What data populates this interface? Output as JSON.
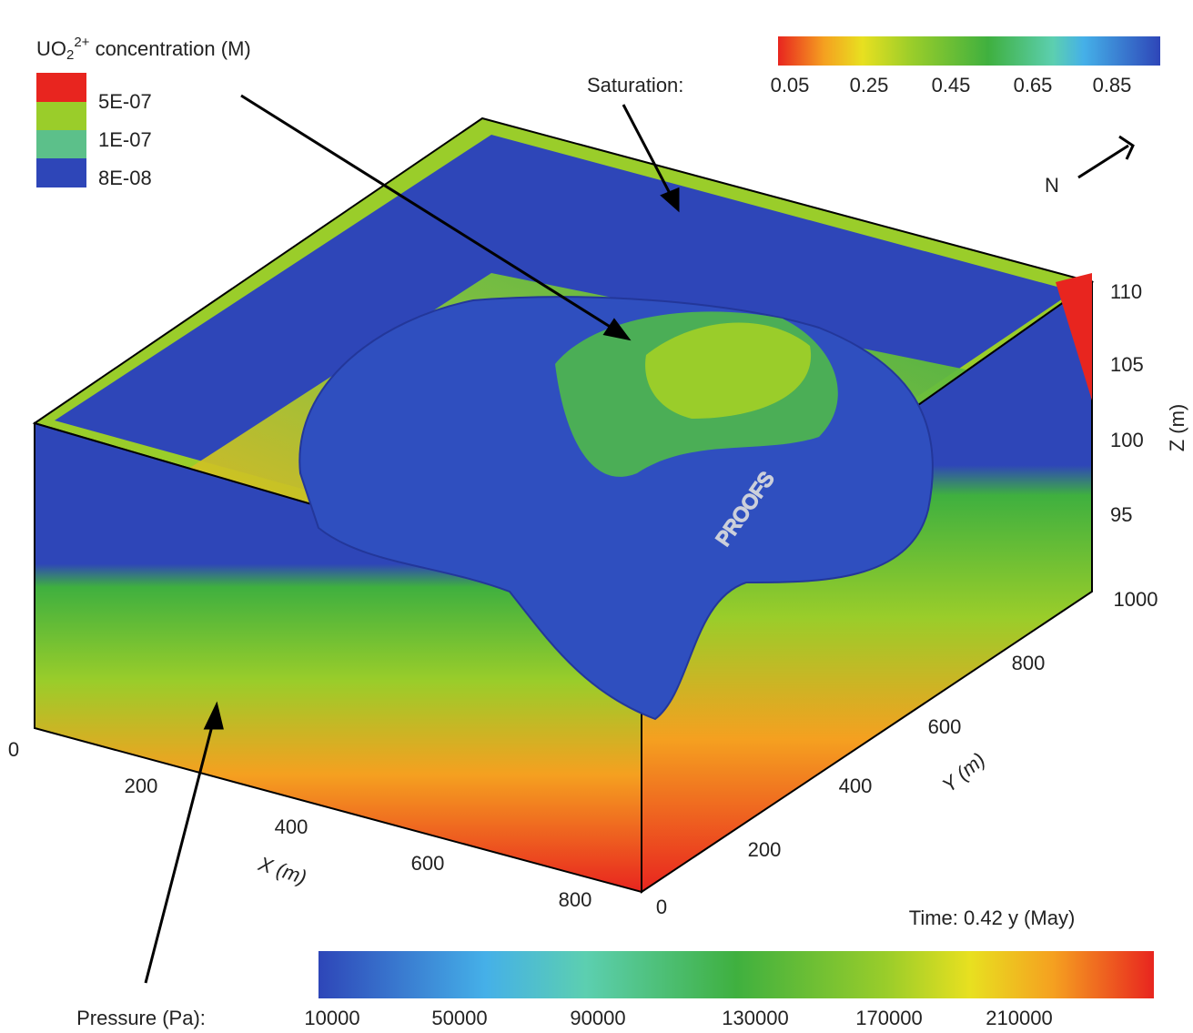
{
  "legend": {
    "title": {
      "base": "UO",
      "sub": "2",
      "sup": "2+",
      "rest": " concentration (M)"
    },
    "entries": [
      "5E-07",
      "1E-07",
      "8E-08"
    ]
  },
  "saturation": {
    "label": "Saturation:",
    "ticks": [
      "0.05",
      "0.25",
      "0.45",
      "0.65",
      "0.85"
    ]
  },
  "compass": "N",
  "z_axis": {
    "label": "Z (m)",
    "ticks": [
      "110",
      "105",
      "100",
      "95"
    ]
  },
  "y_axis": {
    "label": "Y (m)",
    "ticks": [
      "1000",
      "800",
      "600",
      "400",
      "200",
      "0"
    ]
  },
  "x_axis": {
    "label": "X (m)",
    "ticks": [
      "0",
      "200",
      "400",
      "600",
      "800"
    ]
  },
  "time": "Time: 0.42 y (May)",
  "pressure": {
    "label": "Pressure (Pa):",
    "ticks": [
      "10000",
      "50000",
      "90000",
      "130000",
      "170000",
      "210000"
    ]
  },
  "watermark": "PROOFS"
}
